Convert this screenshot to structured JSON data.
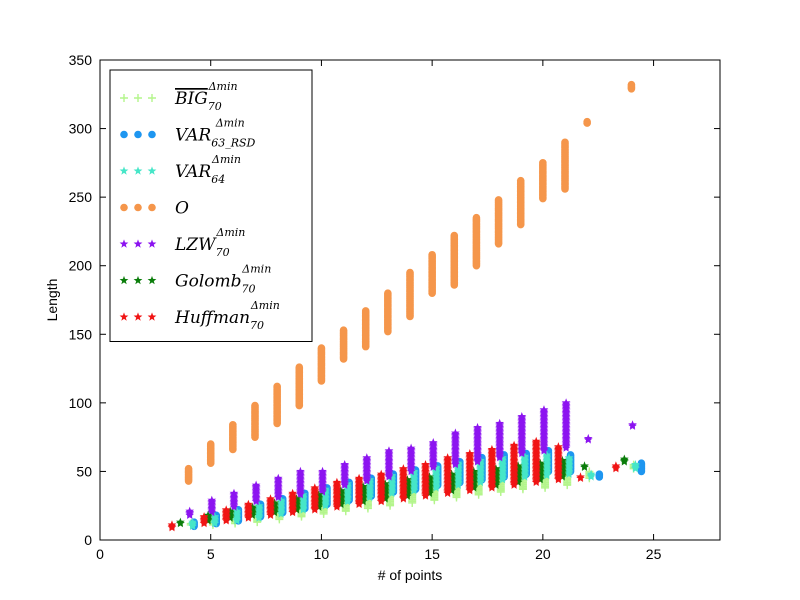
{
  "chart_data": {
    "type": "scatter",
    "title": "",
    "xlabel": "# of points",
    "ylabel": "Length",
    "xlim": [
      0,
      28
    ],
    "ylim": [
      0,
      350
    ],
    "xticks": [
      0,
      5,
      10,
      15,
      20,
      25
    ],
    "yticks": [
      0,
      50,
      100,
      150,
      200,
      250,
      300,
      350
    ],
    "grid": false,
    "legend_position": "top-left",
    "series": [
      {
        "name": "BIG_70^Δmin",
        "legend": {
          "base": "BIG",
          "sub": "70",
          "sup": "Δmin",
          "overline": true
        },
        "marker": "plus",
        "color": "#b4f58c",
        "x_offset": 0.1,
        "ranges": [
          [
            4,
            11,
            12
          ],
          [
            5,
            11,
            15
          ],
          [
            6,
            12,
            18
          ],
          [
            7,
            13,
            21
          ],
          [
            8,
            15,
            24
          ],
          [
            9,
            17,
            27
          ],
          [
            10,
            19,
            30
          ],
          [
            11,
            21,
            33
          ],
          [
            12,
            23,
            36
          ],
          [
            13,
            25,
            39
          ],
          [
            14,
            27,
            42
          ],
          [
            15,
            29,
            45
          ],
          [
            16,
            31,
            48
          ],
          [
            17,
            33,
            50
          ],
          [
            18,
            35,
            52
          ],
          [
            19,
            37,
            54
          ],
          [
            20,
            38,
            55
          ],
          [
            21,
            40,
            57
          ],
          [
            22,
            45,
            50
          ],
          [
            24,
            52,
            55
          ]
        ]
      },
      {
        "name": "VAR_63_RSD^Δmin",
        "legend": {
          "base": "VAR",
          "sub": "63_RSD",
          "sup": "Δmin",
          "overline": false
        },
        "marker": "circle",
        "color": "#1e96f0",
        "x_offset": 0.25,
        "ranges": [
          [
            4,
            10,
            13
          ],
          [
            5,
            12,
            18
          ],
          [
            6,
            14,
            22
          ],
          [
            7,
            17,
            26
          ],
          [
            8,
            20,
            30
          ],
          [
            9,
            23,
            34
          ],
          [
            10,
            26,
            38
          ],
          [
            11,
            29,
            42
          ],
          [
            12,
            32,
            45
          ],
          [
            13,
            35,
            48
          ],
          [
            14,
            37,
            51
          ],
          [
            15,
            40,
            54
          ],
          [
            16,
            42,
            57
          ],
          [
            17,
            44,
            60
          ],
          [
            18,
            46,
            62
          ],
          [
            19,
            48,
            63
          ],
          [
            20,
            50,
            65
          ],
          [
            21,
            50,
            62
          ],
          [
            22.3,
            46,
            48
          ],
          [
            24.2,
            50,
            56
          ]
        ]
      },
      {
        "name": "VAR_64^Δmin",
        "legend": {
          "base": "VAR",
          "sub": "64",
          "sup": "Δmin",
          "overline": false
        },
        "marker": "star",
        "color": "#46e6c8",
        "x_offset": 0.18,
        "ranges": [
          [
            4,
            10,
            13
          ],
          [
            5,
            12,
            17
          ],
          [
            6,
            14,
            21
          ],
          [
            7,
            16,
            25
          ],
          [
            8,
            19,
            29
          ],
          [
            9,
            22,
            33
          ],
          [
            10,
            25,
            37
          ],
          [
            11,
            28,
            41
          ],
          [
            12,
            31,
            44
          ],
          [
            13,
            34,
            47
          ],
          [
            14,
            36,
            50
          ],
          [
            15,
            38,
            53
          ],
          [
            16,
            40,
            56
          ],
          [
            17,
            42,
            58
          ],
          [
            18,
            44,
            60
          ],
          [
            19,
            46,
            61
          ],
          [
            20,
            47,
            62
          ],
          [
            21,
            48,
            60
          ],
          [
            22,
            46,
            48
          ],
          [
            24,
            52,
            55
          ]
        ]
      },
      {
        "name": "O",
        "legend": {
          "base": "O",
          "sub": "",
          "sup": "",
          "overline": false
        },
        "marker": "circle",
        "color": "#f5964b",
        "x_offset": 0,
        "ranges": [
          [
            4,
            43,
            52
          ],
          [
            5,
            56,
            70
          ],
          [
            6,
            66,
            84
          ],
          [
            7,
            75,
            98
          ],
          [
            8,
            85,
            112
          ],
          [
            9,
            98,
            126
          ],
          [
            10,
            116,
            140
          ],
          [
            11,
            132,
            153
          ],
          [
            12,
            141,
            167
          ],
          [
            13,
            152,
            180
          ],
          [
            14,
            163,
            195
          ],
          [
            15,
            180,
            208
          ],
          [
            16,
            186,
            222
          ],
          [
            17,
            200,
            235
          ],
          [
            18,
            216,
            248
          ],
          [
            19,
            230,
            262
          ],
          [
            20,
            249,
            275
          ],
          [
            21,
            256,
            290
          ],
          [
            22,
            304,
            305
          ],
          [
            24,
            329,
            332
          ]
        ]
      },
      {
        "name": "LZW_70^Δmin",
        "legend": {
          "base": "LZW",
          "sub": "70",
          "sup": "Δmin",
          "overline": false
        },
        "marker": "star",
        "color": "#8c14f0",
        "x_offset": 0.05,
        "ranges": [
          [
            4,
            18,
            21
          ],
          [
            5,
            20,
            29
          ],
          [
            6,
            24,
            34
          ],
          [
            7,
            28,
            40
          ],
          [
            8,
            31,
            45
          ],
          [
            9,
            33,
            50
          ],
          [
            10,
            35,
            50
          ],
          [
            11,
            40,
            55
          ],
          [
            12,
            43,
            60
          ],
          [
            13,
            46,
            65
          ],
          [
            14,
            50,
            67
          ],
          [
            15,
            53,
            71
          ],
          [
            16,
            55,
            78
          ],
          [
            17,
            57,
            82
          ],
          [
            18,
            60,
            85
          ],
          [
            19,
            63,
            90
          ],
          [
            20,
            65,
            95
          ],
          [
            21,
            67,
            100
          ],
          [
            22,
            73,
            74
          ],
          [
            24,
            83,
            84
          ]
        ]
      },
      {
        "name": "Golomb_70^Δmin",
        "legend": {
          "base": "Golomb",
          "sub": "70",
          "sup": "Δmin",
          "overline": false
        },
        "marker": "star",
        "color": "#0a7d0a",
        "x_offset": -0.12,
        "ranges": [
          [
            3.75,
            12,
            13
          ],
          [
            5,
            14,
            18
          ],
          [
            6,
            16,
            21
          ],
          [
            7,
            18,
            24
          ],
          [
            8,
            20,
            27
          ],
          [
            9,
            22,
            30
          ],
          [
            10,
            24,
            33
          ],
          [
            11,
            26,
            36
          ],
          [
            12,
            28,
            39
          ],
          [
            13,
            30,
            41
          ],
          [
            14,
            32,
            44
          ],
          [
            15,
            34,
            46
          ],
          [
            16,
            36,
            48
          ],
          [
            17,
            38,
            50
          ],
          [
            18,
            40,
            52
          ],
          [
            19,
            42,
            54
          ],
          [
            20,
            44,
            56
          ],
          [
            21,
            46,
            58
          ],
          [
            22,
            53,
            54
          ],
          [
            23.8,
            57,
            59
          ]
        ]
      },
      {
        "name": "Huffman_70^Δmin",
        "legend": {
          "base": "Huffman",
          "sub": "70",
          "sup": "Δmin",
          "overline": false
        },
        "marker": "star",
        "color": "#f01414",
        "x_offset": -0.3,
        "ranges": [
          [
            3.55,
            9,
            11
          ],
          [
            5,
            12,
            17
          ],
          [
            6,
            14,
            22
          ],
          [
            7,
            16,
            26
          ],
          [
            8,
            18,
            30
          ],
          [
            9,
            20,
            34
          ],
          [
            10,
            22,
            38
          ],
          [
            11,
            24,
            42
          ],
          [
            12,
            26,
            45
          ],
          [
            13,
            28,
            48
          ],
          [
            14,
            30,
            52
          ],
          [
            15,
            32,
            55
          ],
          [
            16,
            34,
            60
          ],
          [
            17,
            36,
            63
          ],
          [
            18,
            38,
            66
          ],
          [
            19,
            40,
            69
          ],
          [
            20,
            42,
            72
          ],
          [
            21,
            44,
            68
          ],
          [
            22,
            45,
            46
          ],
          [
            23.6,
            52,
            54
          ]
        ]
      }
    ]
  }
}
